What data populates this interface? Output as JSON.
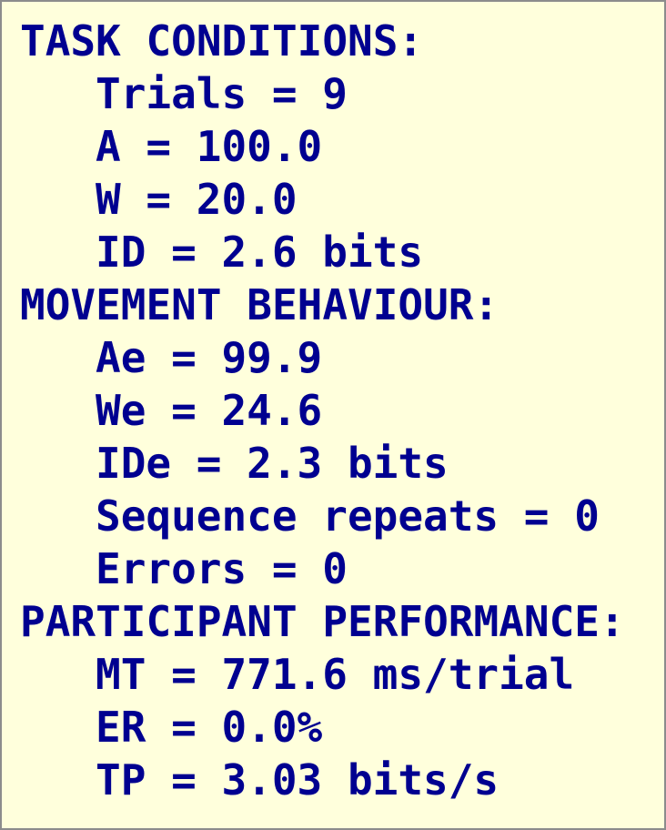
{
  "sections": [
    {
      "heading": "TASK CONDITIONS:",
      "items": [
        "Trials = 9",
        "A = 100.0",
        "W = 20.0",
        "ID = 2.6 bits"
      ]
    },
    {
      "heading": "MOVEMENT BEHAVIOUR:",
      "items": [
        "Ae = 99.9",
        "We = 24.6",
        "IDe = 2.3 bits",
        "Sequence repeats = 0",
        "Errors = 0"
      ]
    },
    {
      "heading": "PARTICIPANT PERFORMANCE:",
      "items": [
        "MT = 771.6 ms/trial",
        "ER = 0.0%",
        "TP = 3.03 bits/s"
      ]
    }
  ]
}
